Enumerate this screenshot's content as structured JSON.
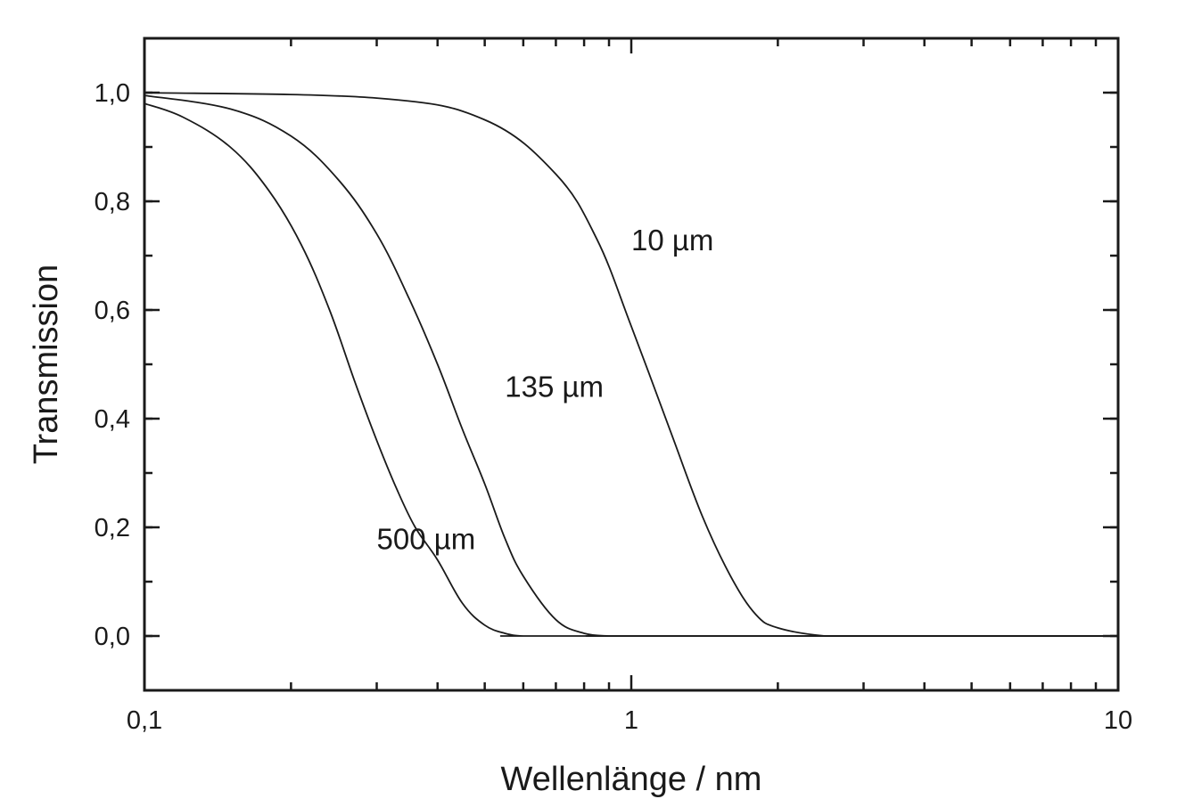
{
  "chart_data": {
    "type": "line",
    "title": "",
    "xlabel": "Wellenlänge / nm",
    "ylabel": "Transmission",
    "x_scale": "log",
    "xlim": [
      0.1,
      10
    ],
    "ylim": [
      -0.1,
      1.1
    ],
    "x_ticks": [
      {
        "value": 0.1,
        "label": "0,1"
      },
      {
        "value": 1,
        "label": "1"
      },
      {
        "value": 10,
        "label": "10"
      }
    ],
    "y_ticks": [
      {
        "value": 0.0,
        "label": "0,0"
      },
      {
        "value": 0.2,
        "label": "0,2"
      },
      {
        "value": 0.4,
        "label": "0,4"
      },
      {
        "value": 0.6,
        "label": "0,6"
      },
      {
        "value": 0.8,
        "label": "0,8"
      },
      {
        "value": 1.0,
        "label": "1,0"
      }
    ],
    "grid": false,
    "legend": "none",
    "series": [
      {
        "name": "10 µm",
        "x": [
          0.1,
          0.3,
          0.5,
          0.7,
          0.85,
          1.0,
          1.2,
          1.4,
          1.6,
          1.8,
          2.0,
          2.5,
          3,
          10
        ],
        "y": [
          1.0,
          0.99,
          0.95,
          0.85,
          0.73,
          0.57,
          0.38,
          0.22,
          0.11,
          0.04,
          0.015,
          0.0,
          0.0,
          0.0
        ]
      },
      {
        "name": "135 µm",
        "x": [
          0.1,
          0.15,
          0.2,
          0.25,
          0.3,
          0.35,
          0.4,
          0.45,
          0.5,
          0.55,
          0.6,
          0.7,
          0.8,
          0.9,
          1.0,
          10
        ],
        "y": [
          0.995,
          0.97,
          0.92,
          0.84,
          0.74,
          0.62,
          0.5,
          0.38,
          0.28,
          0.18,
          0.11,
          0.03,
          0.005,
          0.0,
          0.0,
          0.0
        ]
      },
      {
        "name": "500 µm",
        "x": [
          0.1,
          0.12,
          0.15,
          0.18,
          0.21,
          0.24,
          0.27,
          0.3,
          0.33,
          0.36,
          0.4,
          0.45,
          0.5,
          0.55,
          0.6,
          0.7,
          10
        ],
        "y": [
          0.98,
          0.955,
          0.9,
          0.82,
          0.72,
          0.6,
          0.47,
          0.36,
          0.27,
          0.2,
          0.14,
          0.06,
          0.02,
          0.005,
          0.0,
          0.0,
          0.0
        ]
      }
    ],
    "annotations": [
      {
        "text": "10 µm",
        "x": 1.0,
        "y": 0.71
      },
      {
        "text": "135 µm",
        "x": 0.55,
        "y": 0.44
      },
      {
        "text": "500 µm",
        "x": 0.3,
        "y": 0.16
      }
    ]
  }
}
